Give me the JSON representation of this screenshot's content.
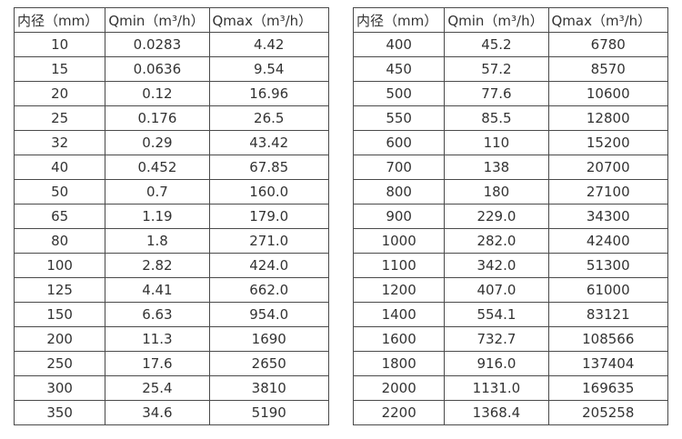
{
  "text_color": "#333333",
  "border_color": "#4a4a4a",
  "tables": [
    {
      "name": "flow-rate-table-small-diameters",
      "headers": [
        "内径（mm）",
        "Qmin（m³/h）",
        "Qmax（m³/h）"
      ],
      "rows": [
        [
          "10",
          "0.0283",
          "4.42"
        ],
        [
          "15",
          "0.0636",
          "9.54"
        ],
        [
          "20",
          "0.12",
          "16.96"
        ],
        [
          "25",
          "0.176",
          "26.5"
        ],
        [
          "32",
          "0.29",
          "43.42"
        ],
        [
          "40",
          "0.452",
          "67.85"
        ],
        [
          "50",
          "0.7",
          "160.0"
        ],
        [
          "65",
          "1.19",
          "179.0"
        ],
        [
          "80",
          "1.8",
          "271.0"
        ],
        [
          "100",
          "2.82",
          "424.0"
        ],
        [
          "125",
          "4.41",
          "662.0"
        ],
        [
          "150",
          "6.63",
          "954.0"
        ],
        [
          "200",
          "11.3",
          "1690"
        ],
        [
          "250",
          "17.6",
          "2650"
        ],
        [
          "300",
          "25.4",
          "3810"
        ],
        [
          "350",
          "34.6",
          "5190"
        ]
      ]
    },
    {
      "name": "flow-rate-table-large-diameters",
      "headers": [
        "内径（mm）",
        "Qmin（m³/h）",
        "Qmax（m³/h）"
      ],
      "rows": [
        [
          "400",
          "45.2",
          "6780"
        ],
        [
          "450",
          "57.2",
          "8570"
        ],
        [
          "500",
          "77.6",
          "10600"
        ],
        [
          "550",
          "85.5",
          "12800"
        ],
        [
          "600",
          "110",
          "15200"
        ],
        [
          "700",
          "138",
          "20700"
        ],
        [
          "800",
          "180",
          "27100"
        ],
        [
          "900",
          "229.0",
          "34300"
        ],
        [
          "1000",
          "282.0",
          "42400"
        ],
        [
          "1100",
          "342.0",
          "51300"
        ],
        [
          "1200",
          "407.0",
          "61000"
        ],
        [
          "1400",
          "554.1",
          "83121"
        ],
        [
          "1600",
          "732.7",
          "108566"
        ],
        [
          "1800",
          "916.0",
          "137404"
        ],
        [
          "2000",
          "1131.0",
          "169635"
        ],
        [
          "2200",
          "1368.4",
          "205258"
        ]
      ]
    }
  ]
}
